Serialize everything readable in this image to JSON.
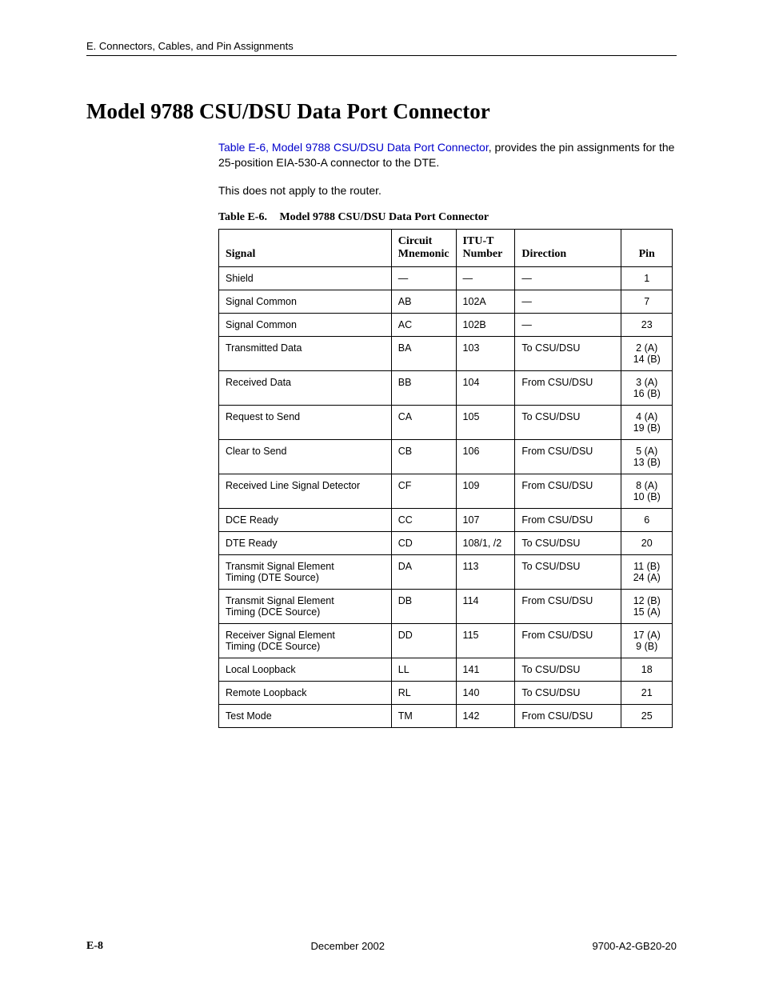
{
  "header": {
    "breadcrumb": "E. Connectors, Cables, and Pin Assignments"
  },
  "title": "Model 9788 CSU/DSU Data Port Connector",
  "intro": {
    "link_text": "Table E-6, Model 9788 CSU/DSU Data Port Connector",
    "rest": ", provides the pin assignments for the 25-position EIA-530-A connector to the DTE."
  },
  "note": "This does not apply to the router.",
  "table": {
    "caption_label": "Table E-6.",
    "caption_title": "Model 9788 CSU/DSU Data Port Connector",
    "columns": [
      "Signal",
      "Circuit\nMnemonic",
      "ITU-T\nNumber",
      "Direction",
      "Pin"
    ],
    "rows": [
      [
        "Shield",
        "—",
        "—",
        "—",
        "1"
      ],
      [
        "Signal Common",
        "AB",
        "102A",
        "—",
        "7"
      ],
      [
        "Signal Common",
        "AC",
        "102B",
        "—",
        "23"
      ],
      [
        "Transmitted Data",
        "BA",
        "103",
        "To CSU/DSU",
        "2 (A)\n14 (B)"
      ],
      [
        "Received Data",
        "BB",
        "104",
        "From CSU/DSU",
        "3 (A)\n16 (B)"
      ],
      [
        "Request to Send",
        "CA",
        "105",
        "To CSU/DSU",
        "4 (A)\n19 (B)"
      ],
      [
        "Clear to Send",
        "CB",
        "106",
        "From CSU/DSU",
        "5 (A)\n13 (B)"
      ],
      [
        "Received Line Signal Detector",
        "CF",
        "109",
        "From CSU/DSU",
        "8 (A)\n10 (B)"
      ],
      [
        "DCE Ready",
        "CC",
        "107",
        "From CSU/DSU",
        "6"
      ],
      [
        "DTE Ready",
        "CD",
        "108/1, /2",
        "To CSU/DSU",
        "20"
      ],
      [
        "Transmit Signal Element\nTiming (DTE Source)",
        "DA",
        "113",
        "To CSU/DSU",
        "11 (B)\n24 (A)"
      ],
      [
        "Transmit Signal Element\nTiming (DCE Source)",
        "DB",
        "114",
        "From CSU/DSU",
        "12 (B)\n15 (A)"
      ],
      [
        "Receiver Signal Element\nTiming (DCE Source)",
        "DD",
        "115",
        "From CSU/DSU",
        "17 (A)\n9 (B)"
      ],
      [
        "Local Loopback",
        "LL",
        "141",
        "To CSU/DSU",
        "18"
      ],
      [
        "Remote Loopback",
        "RL",
        "140",
        "To CSU/DSU",
        "21"
      ],
      [
        "Test Mode",
        "TM",
        "142",
        "From CSU/DSU",
        "25"
      ]
    ]
  },
  "footer": {
    "page": "E-8",
    "date": "December 2002",
    "doc": "9700-A2-GB20-20"
  }
}
